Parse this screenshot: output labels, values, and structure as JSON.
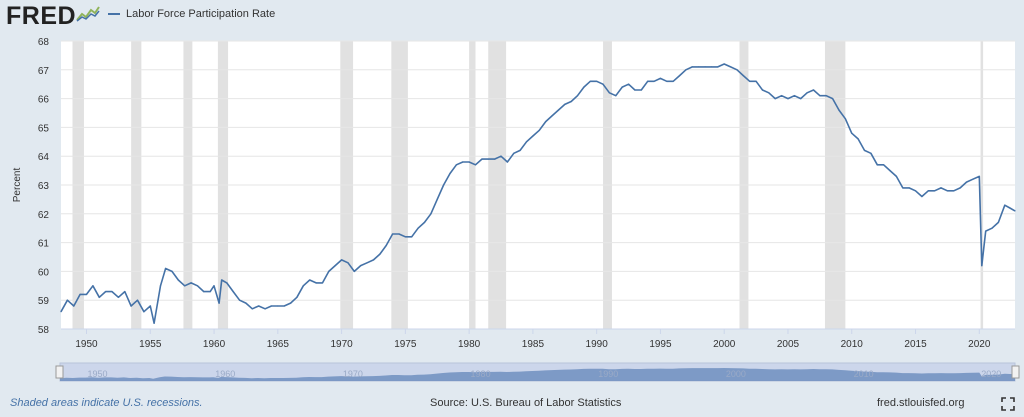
{
  "logo": {
    "text": "FRED"
  },
  "footer": {
    "note": "Shaded areas indicate U.S. recessions.",
    "source": "Source: U.S. Bureau of Labor Statistics",
    "url": "fred.stlouisfed.org"
  },
  "icons": {
    "logo_graph": "chart-line-icon",
    "fullscreen": "fullscreen-icon"
  },
  "colors": {
    "series": "#4572a7",
    "recession": "#e1e1e1",
    "navigator_fill": "#6f8fbf",
    "navigator_bg": "#ccd6eb"
  },
  "chart_data": {
    "type": "line",
    "title": "",
    "xlabel": "",
    "ylabel": "Percent",
    "xlim": [
      1948.0,
      2022.8
    ],
    "ylim": [
      58,
      68
    ],
    "grid": true,
    "legend": "top-left",
    "x_ticks": [
      1950,
      1955,
      1960,
      1965,
      1970,
      1975,
      1980,
      1985,
      1990,
      1995,
      2000,
      2005,
      2010,
      2015,
      2020
    ],
    "y_ticks": [
      58,
      59,
      60,
      61,
      62,
      63,
      64,
      65,
      66,
      67,
      68
    ],
    "navigator_ticks": [
      "1950",
      "1960",
      "1970",
      "1980",
      "1990",
      "2000",
      "2010",
      "2020"
    ],
    "recessions": [
      [
        1948.9,
        1949.8
      ],
      [
        1953.5,
        1954.3
      ],
      [
        1957.6,
        1958.3
      ],
      [
        1960.3,
        1961.1
      ],
      [
        1969.9,
        1970.9
      ],
      [
        1973.9,
        1975.2
      ],
      [
        1980.0,
        1980.5
      ],
      [
        1981.5,
        1982.9
      ],
      [
        1990.5,
        1991.2
      ],
      [
        2001.2,
        2001.9
      ],
      [
        2007.9,
        2009.5
      ],
      [
        2020.1,
        2020.3
      ]
    ],
    "series": [
      {
        "name": "Labor Force Participation Rate",
        "points": [
          [
            1948.0,
            58.6
          ],
          [
            1948.5,
            59.0
          ],
          [
            1949.0,
            58.8
          ],
          [
            1949.5,
            59.2
          ],
          [
            1950.0,
            59.2
          ],
          [
            1950.5,
            59.5
          ],
          [
            1951.0,
            59.1
          ],
          [
            1951.5,
            59.3
          ],
          [
            1952.0,
            59.3
          ],
          [
            1952.5,
            59.1
          ],
          [
            1953.0,
            59.3
          ],
          [
            1953.5,
            58.8
          ],
          [
            1954.0,
            59.0
          ],
          [
            1954.5,
            58.6
          ],
          [
            1955.0,
            58.8
          ],
          [
            1955.3,
            58.2
          ],
          [
            1955.8,
            59.5
          ],
          [
            1956.2,
            60.1
          ],
          [
            1956.7,
            60.0
          ],
          [
            1957.2,
            59.7
          ],
          [
            1957.7,
            59.5
          ],
          [
            1958.2,
            59.6
          ],
          [
            1958.7,
            59.5
          ],
          [
            1959.2,
            59.3
          ],
          [
            1959.7,
            59.3
          ],
          [
            1960.0,
            59.5
          ],
          [
            1960.4,
            58.9
          ],
          [
            1960.6,
            59.7
          ],
          [
            1961.0,
            59.6
          ],
          [
            1961.5,
            59.3
          ],
          [
            1962.0,
            59.0
          ],
          [
            1962.5,
            58.9
          ],
          [
            1963.0,
            58.7
          ],
          [
            1963.5,
            58.8
          ],
          [
            1964.0,
            58.7
          ],
          [
            1964.5,
            58.8
          ],
          [
            1965.0,
            58.8
          ],
          [
            1965.5,
            58.8
          ],
          [
            1966.0,
            58.9
          ],
          [
            1966.5,
            59.1
          ],
          [
            1967.0,
            59.5
          ],
          [
            1967.5,
            59.7
          ],
          [
            1968.0,
            59.6
          ],
          [
            1968.5,
            59.6
          ],
          [
            1969.0,
            60.0
          ],
          [
            1969.5,
            60.2
          ],
          [
            1970.0,
            60.4
          ],
          [
            1970.5,
            60.3
          ],
          [
            1971.0,
            60.0
          ],
          [
            1971.5,
            60.2
          ],
          [
            1972.0,
            60.3
          ],
          [
            1972.5,
            60.4
          ],
          [
            1973.0,
            60.6
          ],
          [
            1973.5,
            60.9
          ],
          [
            1974.0,
            61.3
          ],
          [
            1974.5,
            61.3
          ],
          [
            1975.0,
            61.2
          ],
          [
            1975.5,
            61.2
          ],
          [
            1976.0,
            61.5
          ],
          [
            1976.5,
            61.7
          ],
          [
            1977.0,
            62.0
          ],
          [
            1977.5,
            62.5
          ],
          [
            1978.0,
            63.0
          ],
          [
            1978.5,
            63.4
          ],
          [
            1979.0,
            63.7
          ],
          [
            1979.5,
            63.8
          ],
          [
            1980.0,
            63.8
          ],
          [
            1980.5,
            63.7
          ],
          [
            1981.0,
            63.9
          ],
          [
            1981.5,
            63.9
          ],
          [
            1982.0,
            63.9
          ],
          [
            1982.5,
            64.0
          ],
          [
            1983.0,
            63.8
          ],
          [
            1983.5,
            64.1
          ],
          [
            1984.0,
            64.2
          ],
          [
            1984.5,
            64.5
          ],
          [
            1985.0,
            64.7
          ],
          [
            1985.5,
            64.9
          ],
          [
            1986.0,
            65.2
          ],
          [
            1986.5,
            65.4
          ],
          [
            1987.0,
            65.6
          ],
          [
            1987.5,
            65.8
          ],
          [
            1988.0,
            65.9
          ],
          [
            1988.5,
            66.1
          ],
          [
            1989.0,
            66.4
          ],
          [
            1989.5,
            66.6
          ],
          [
            1990.0,
            66.6
          ],
          [
            1990.5,
            66.5
          ],
          [
            1991.0,
            66.2
          ],
          [
            1991.5,
            66.1
          ],
          [
            1992.0,
            66.4
          ],
          [
            1992.5,
            66.5
          ],
          [
            1993.0,
            66.3
          ],
          [
            1993.5,
            66.3
          ],
          [
            1994.0,
            66.6
          ],
          [
            1994.5,
            66.6
          ],
          [
            1995.0,
            66.7
          ],
          [
            1995.5,
            66.6
          ],
          [
            1996.0,
            66.6
          ],
          [
            1996.5,
            66.8
          ],
          [
            1997.0,
            67.0
          ],
          [
            1997.5,
            67.1
          ],
          [
            1998.0,
            67.1
          ],
          [
            1998.5,
            67.1
          ],
          [
            1999.0,
            67.1
          ],
          [
            1999.5,
            67.1
          ],
          [
            2000.0,
            67.2
          ],
          [
            2000.5,
            67.1
          ],
          [
            2001.0,
            67.0
          ],
          [
            2001.5,
            66.8
          ],
          [
            2002.0,
            66.6
          ],
          [
            2002.5,
            66.6
          ],
          [
            2003.0,
            66.3
          ],
          [
            2003.5,
            66.2
          ],
          [
            2004.0,
            66.0
          ],
          [
            2004.5,
            66.1
          ],
          [
            2005.0,
            66.0
          ],
          [
            2005.5,
            66.1
          ],
          [
            2006.0,
            66.0
          ],
          [
            2006.5,
            66.2
          ],
          [
            2007.0,
            66.3
          ],
          [
            2007.5,
            66.1
          ],
          [
            2008.0,
            66.1
          ],
          [
            2008.5,
            66.0
          ],
          [
            2009.0,
            65.6
          ],
          [
            2009.5,
            65.3
          ],
          [
            2010.0,
            64.8
          ],
          [
            2010.5,
            64.6
          ],
          [
            2011.0,
            64.2
          ],
          [
            2011.5,
            64.1
          ],
          [
            2012.0,
            63.7
          ],
          [
            2012.5,
            63.7
          ],
          [
            2013.0,
            63.5
          ],
          [
            2013.5,
            63.3
          ],
          [
            2014.0,
            62.9
          ],
          [
            2014.5,
            62.9
          ],
          [
            2015.0,
            62.8
          ],
          [
            2015.5,
            62.6
          ],
          [
            2016.0,
            62.8
          ],
          [
            2016.5,
            62.8
          ],
          [
            2017.0,
            62.9
          ],
          [
            2017.5,
            62.8
          ],
          [
            2018.0,
            62.8
          ],
          [
            2018.5,
            62.9
          ],
          [
            2019.0,
            63.1
          ],
          [
            2019.5,
            63.2
          ],
          [
            2020.0,
            63.3
          ],
          [
            2020.2,
            60.2
          ],
          [
            2020.5,
            61.4
          ],
          [
            2021.0,
            61.5
          ],
          [
            2021.5,
            61.7
          ],
          [
            2022.0,
            62.3
          ],
          [
            2022.4,
            62.2
          ],
          [
            2022.8,
            62.1
          ]
        ]
      }
    ]
  }
}
